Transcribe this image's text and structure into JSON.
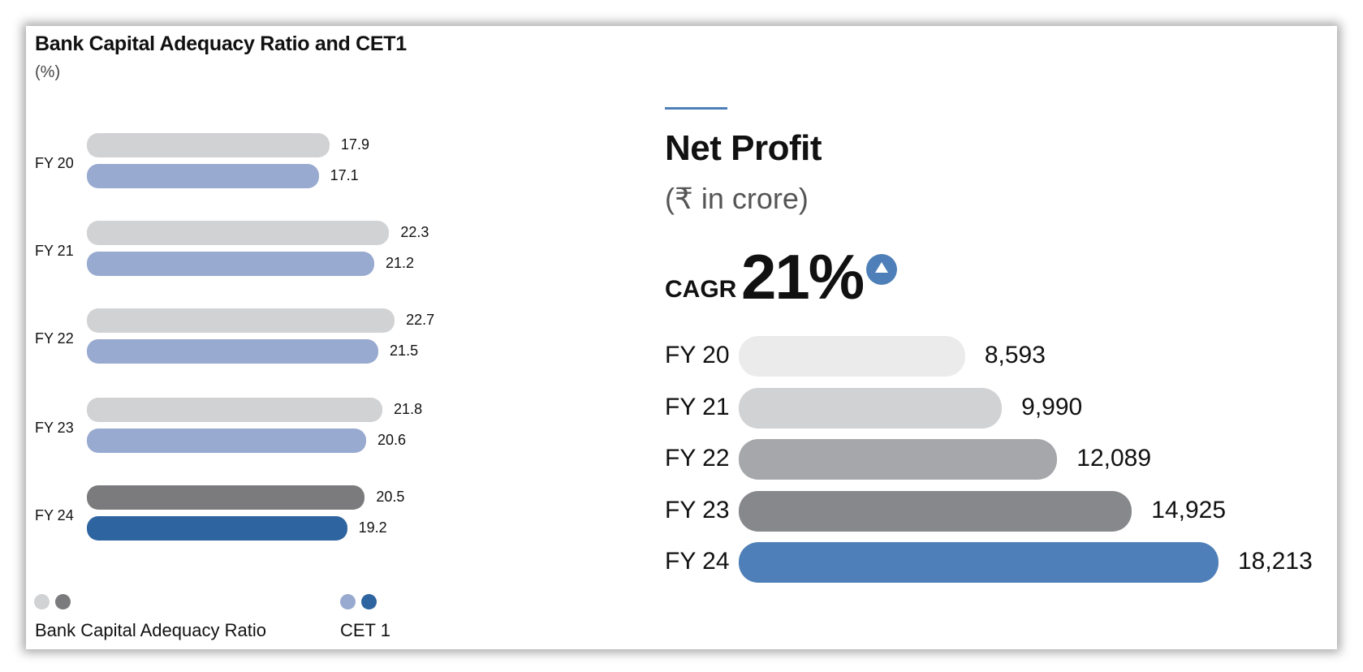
{
  "chart_data": [
    {
      "type": "bar",
      "orientation": "horizontal",
      "title": "Bank Capital Adequacy Ratio and CET1",
      "unit": "(%)",
      "categories": [
        "FY 20",
        "FY 21",
        "FY 22",
        "FY 23",
        "FY 24"
      ],
      "series": [
        {
          "name": "Bank Capital Adequacy Ratio",
          "values": [
            17.9,
            22.3,
            22.7,
            21.8,
            20.5
          ],
          "value_labels": [
            "17.9",
            "22.3",
            "22.7",
            "21.8",
            "20.5"
          ],
          "color": "#d1d2d4",
          "highlight_color": "#7b7b7d"
        },
        {
          "name": "CET 1",
          "values": [
            17.1,
            21.2,
            21.5,
            20.6,
            19.2
          ],
          "value_labels": [
            "17.1",
            "21.2",
            "21.5",
            "20.6",
            "19.2"
          ],
          "color": "#98aad0",
          "highlight_color": "#2e64a0"
        }
      ],
      "legend": [
        "Bank Capital Adequacy Ratio",
        "CET 1"
      ],
      "legend_position": "bottom"
    },
    {
      "type": "bar",
      "orientation": "horizontal",
      "title": "Net Profit",
      "unit": "(₹ in crore)",
      "cagr_label": "CAGR",
      "cagr_value": "21%",
      "categories": [
        "FY 20",
        "FY 21",
        "FY 22",
        "FY 23",
        "FY 24"
      ],
      "values": [
        8593,
        9990,
        12089,
        14925,
        18213
      ],
      "value_labels": [
        "8,593",
        "9,990",
        "12,089",
        "14,925",
        "18,213"
      ],
      "colors": [
        "#ebebeb",
        "#d1d2d4",
        "#a6a7aa",
        "#87888c",
        "#4e7fb8"
      ]
    }
  ]
}
